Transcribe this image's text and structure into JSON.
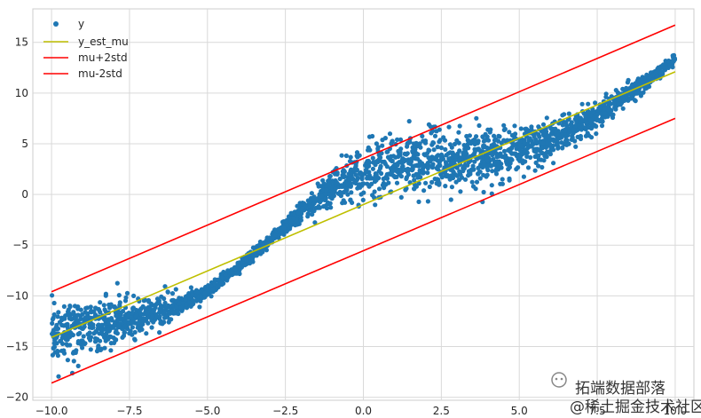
{
  "chart_data": {
    "type": "scatter",
    "xlim": [
      -10.6,
      10.6
    ],
    "ylim": [
      -20.3,
      18.3
    ],
    "xticks": [
      -10.0,
      -7.5,
      -5.0,
      -2.5,
      0.0,
      2.5,
      5.0,
      7.5,
      10.0
    ],
    "xtick_labels": [
      "−10.0",
      "−7.5",
      "−5.0",
      "−2.5",
      "0.0",
      "2.5",
      "5.0",
      "7.5",
      "10.0"
    ],
    "yticks": [
      -20,
      -15,
      -10,
      -5,
      0,
      5,
      10,
      15
    ],
    "ytick_labels": [
      "−20",
      "−15",
      "−10",
      "−5",
      "0",
      "5",
      "10",
      "15"
    ],
    "grid": true,
    "legend_position": "top-left",
    "series": [
      {
        "name": "y",
        "kind": "scatter",
        "color": "#1f77b4",
        "x_range": [
          -10.0,
          10.0
        ],
        "center_samples": {
          "x": [
            -10,
            -9,
            -8,
            -7,
            -6,
            -5,
            -4,
            -3.5,
            -3,
            -2.5,
            -2,
            -1.5,
            -1,
            0,
            1,
            2,
            3,
            4,
            5,
            6,
            7,
            8,
            9,
            10
          ],
          "y": [
            -13.5,
            -13.2,
            -12.7,
            -12.0,
            -11.0,
            -9.6,
            -7.2,
            -5.8,
            -4.5,
            -3.2,
            -1.8,
            -0.6,
            0.7,
            2.2,
            2.8,
            3.2,
            3.5,
            3.8,
            4.3,
            5.4,
            6.8,
            8.8,
            11.0,
            13.3
          ]
        }
      },
      {
        "name": "y_est_mu",
        "kind": "line",
        "color": "#bfbf00",
        "x": [
          -10.0,
          10.0
        ],
        "y": [
          -14.1,
          12.1
        ]
      },
      {
        "name": "mu+2std",
        "kind": "line",
        "color": "#ff0000",
        "x": [
          -10.0,
          10.0
        ],
        "y": [
          -9.6,
          16.7
        ]
      },
      {
        "name": "mu-2std",
        "kind": "line",
        "color": "#ff0000",
        "x": [
          -10.0,
          10.0
        ],
        "y": [
          -18.6,
          7.5
        ]
      }
    ]
  },
  "watermark": {
    "line1": "拓端数据部落",
    "line2": "@稀土掘金技术社区"
  }
}
